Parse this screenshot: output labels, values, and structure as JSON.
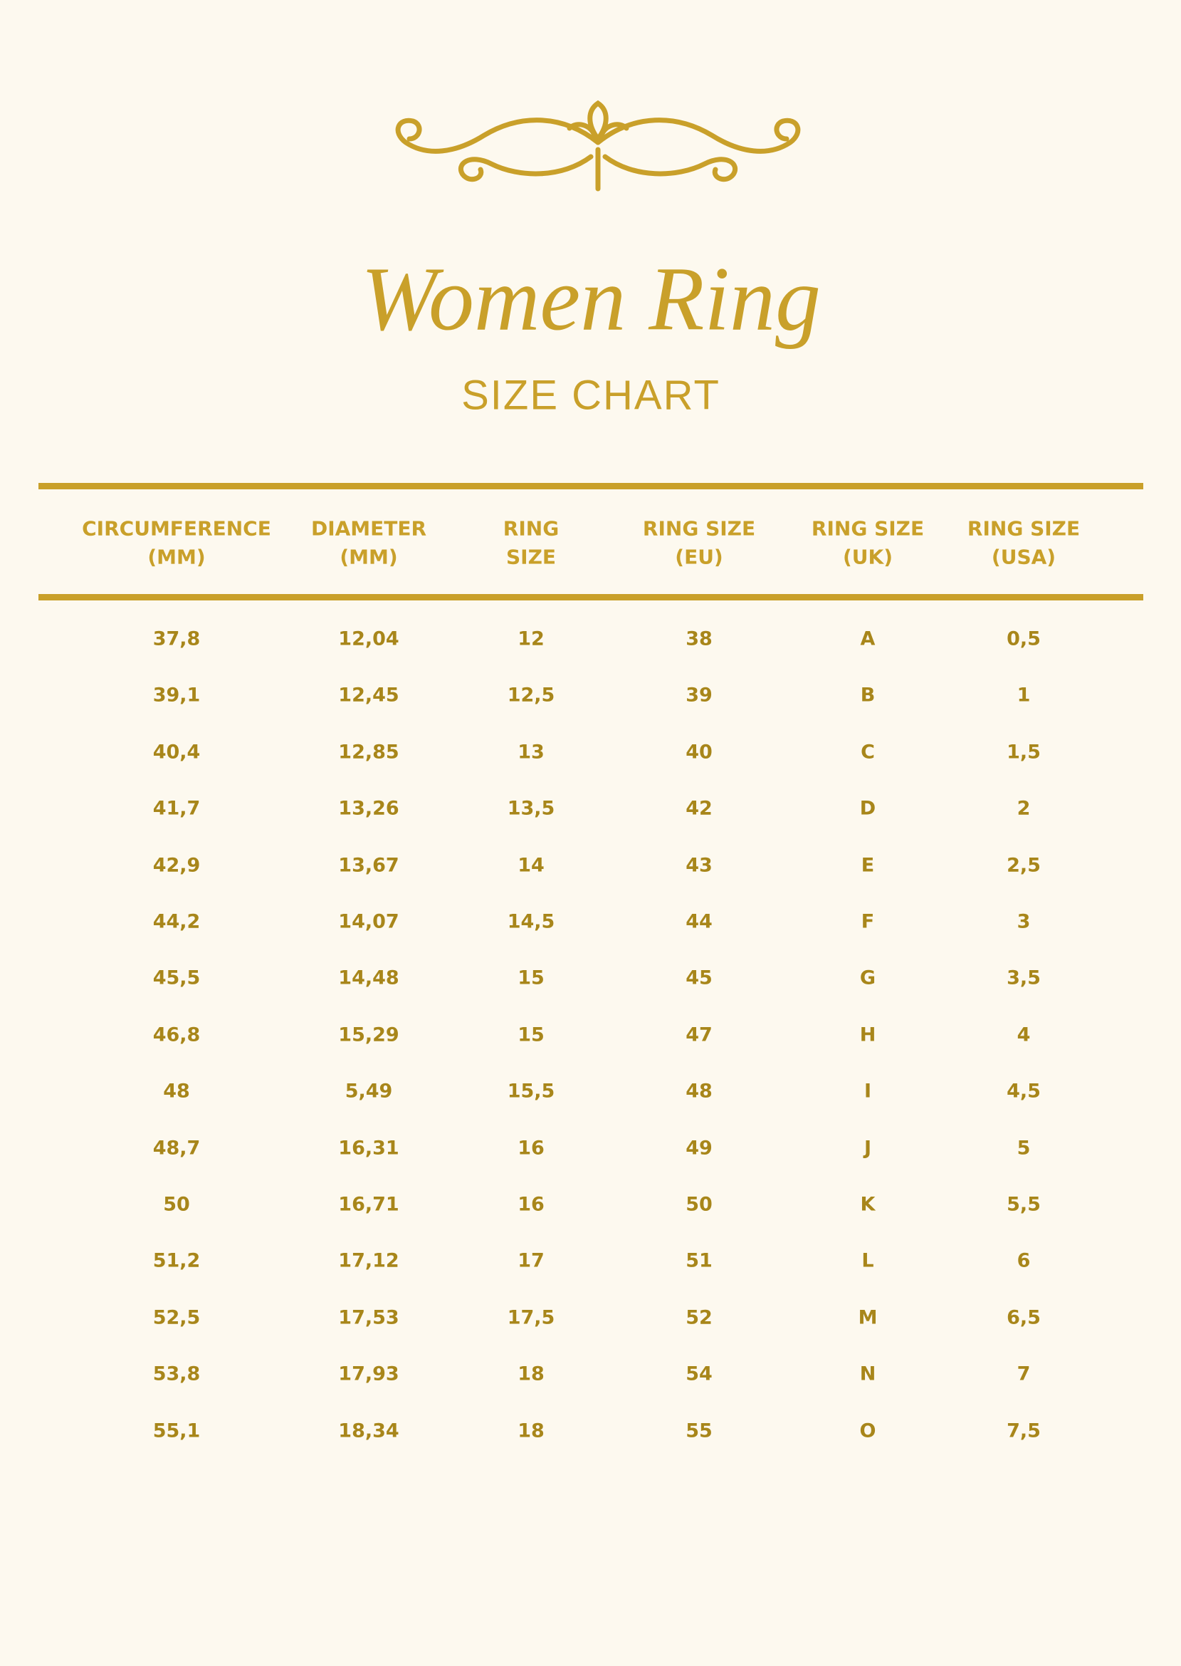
{
  "header": {
    "title": "Women Ring",
    "subtitle": "SIZE CHART"
  },
  "table": {
    "columns": [
      [
        "CIRCUMFERENCE",
        "(MM)"
      ],
      [
        "DIAMETER",
        "(MM)"
      ],
      [
        "RING",
        "SIZE"
      ],
      [
        "RING SIZE",
        "(EU)"
      ],
      [
        "RING SIZE",
        "(UK)"
      ],
      [
        "RING SIZE",
        "(USA)"
      ]
    ],
    "rows": [
      [
        "37,8",
        "12,04",
        "12",
        "38",
        "A",
        "0,5"
      ],
      [
        "39,1",
        "12,45",
        "12,5",
        "39",
        "B",
        "1"
      ],
      [
        "40,4",
        "12,85",
        "13",
        "40",
        "C",
        "1,5"
      ],
      [
        "41,7",
        "13,26",
        "13,5",
        "42",
        "D",
        "2"
      ],
      [
        "42,9",
        "13,67",
        "14",
        "43",
        "E",
        "2,5"
      ],
      [
        "44,2",
        "14,07",
        "14,5",
        "44",
        "F",
        "3"
      ],
      [
        "45,5",
        "14,48",
        "15",
        "45",
        "G",
        "3,5"
      ],
      [
        "46,8",
        "15,29",
        "15",
        "47",
        "H",
        "4"
      ],
      [
        "48",
        "5,49",
        "15,5",
        "48",
        "I",
        "4,5"
      ],
      [
        "48,7",
        "16,31",
        "16",
        "49",
        "J",
        "5"
      ],
      [
        "50",
        "16,71",
        "16",
        "50",
        "K",
        "5,5"
      ],
      [
        "51,2",
        "17,12",
        "17",
        "51",
        "L",
        "6"
      ],
      [
        "52,5",
        "17,53",
        "17,5",
        "52",
        "M",
        "6,5"
      ],
      [
        "53,8",
        "17,93",
        "18",
        "54",
        "N",
        "7"
      ],
      [
        "55,1",
        "18,34",
        "18",
        "55",
        "O",
        "7,5"
      ]
    ]
  }
}
